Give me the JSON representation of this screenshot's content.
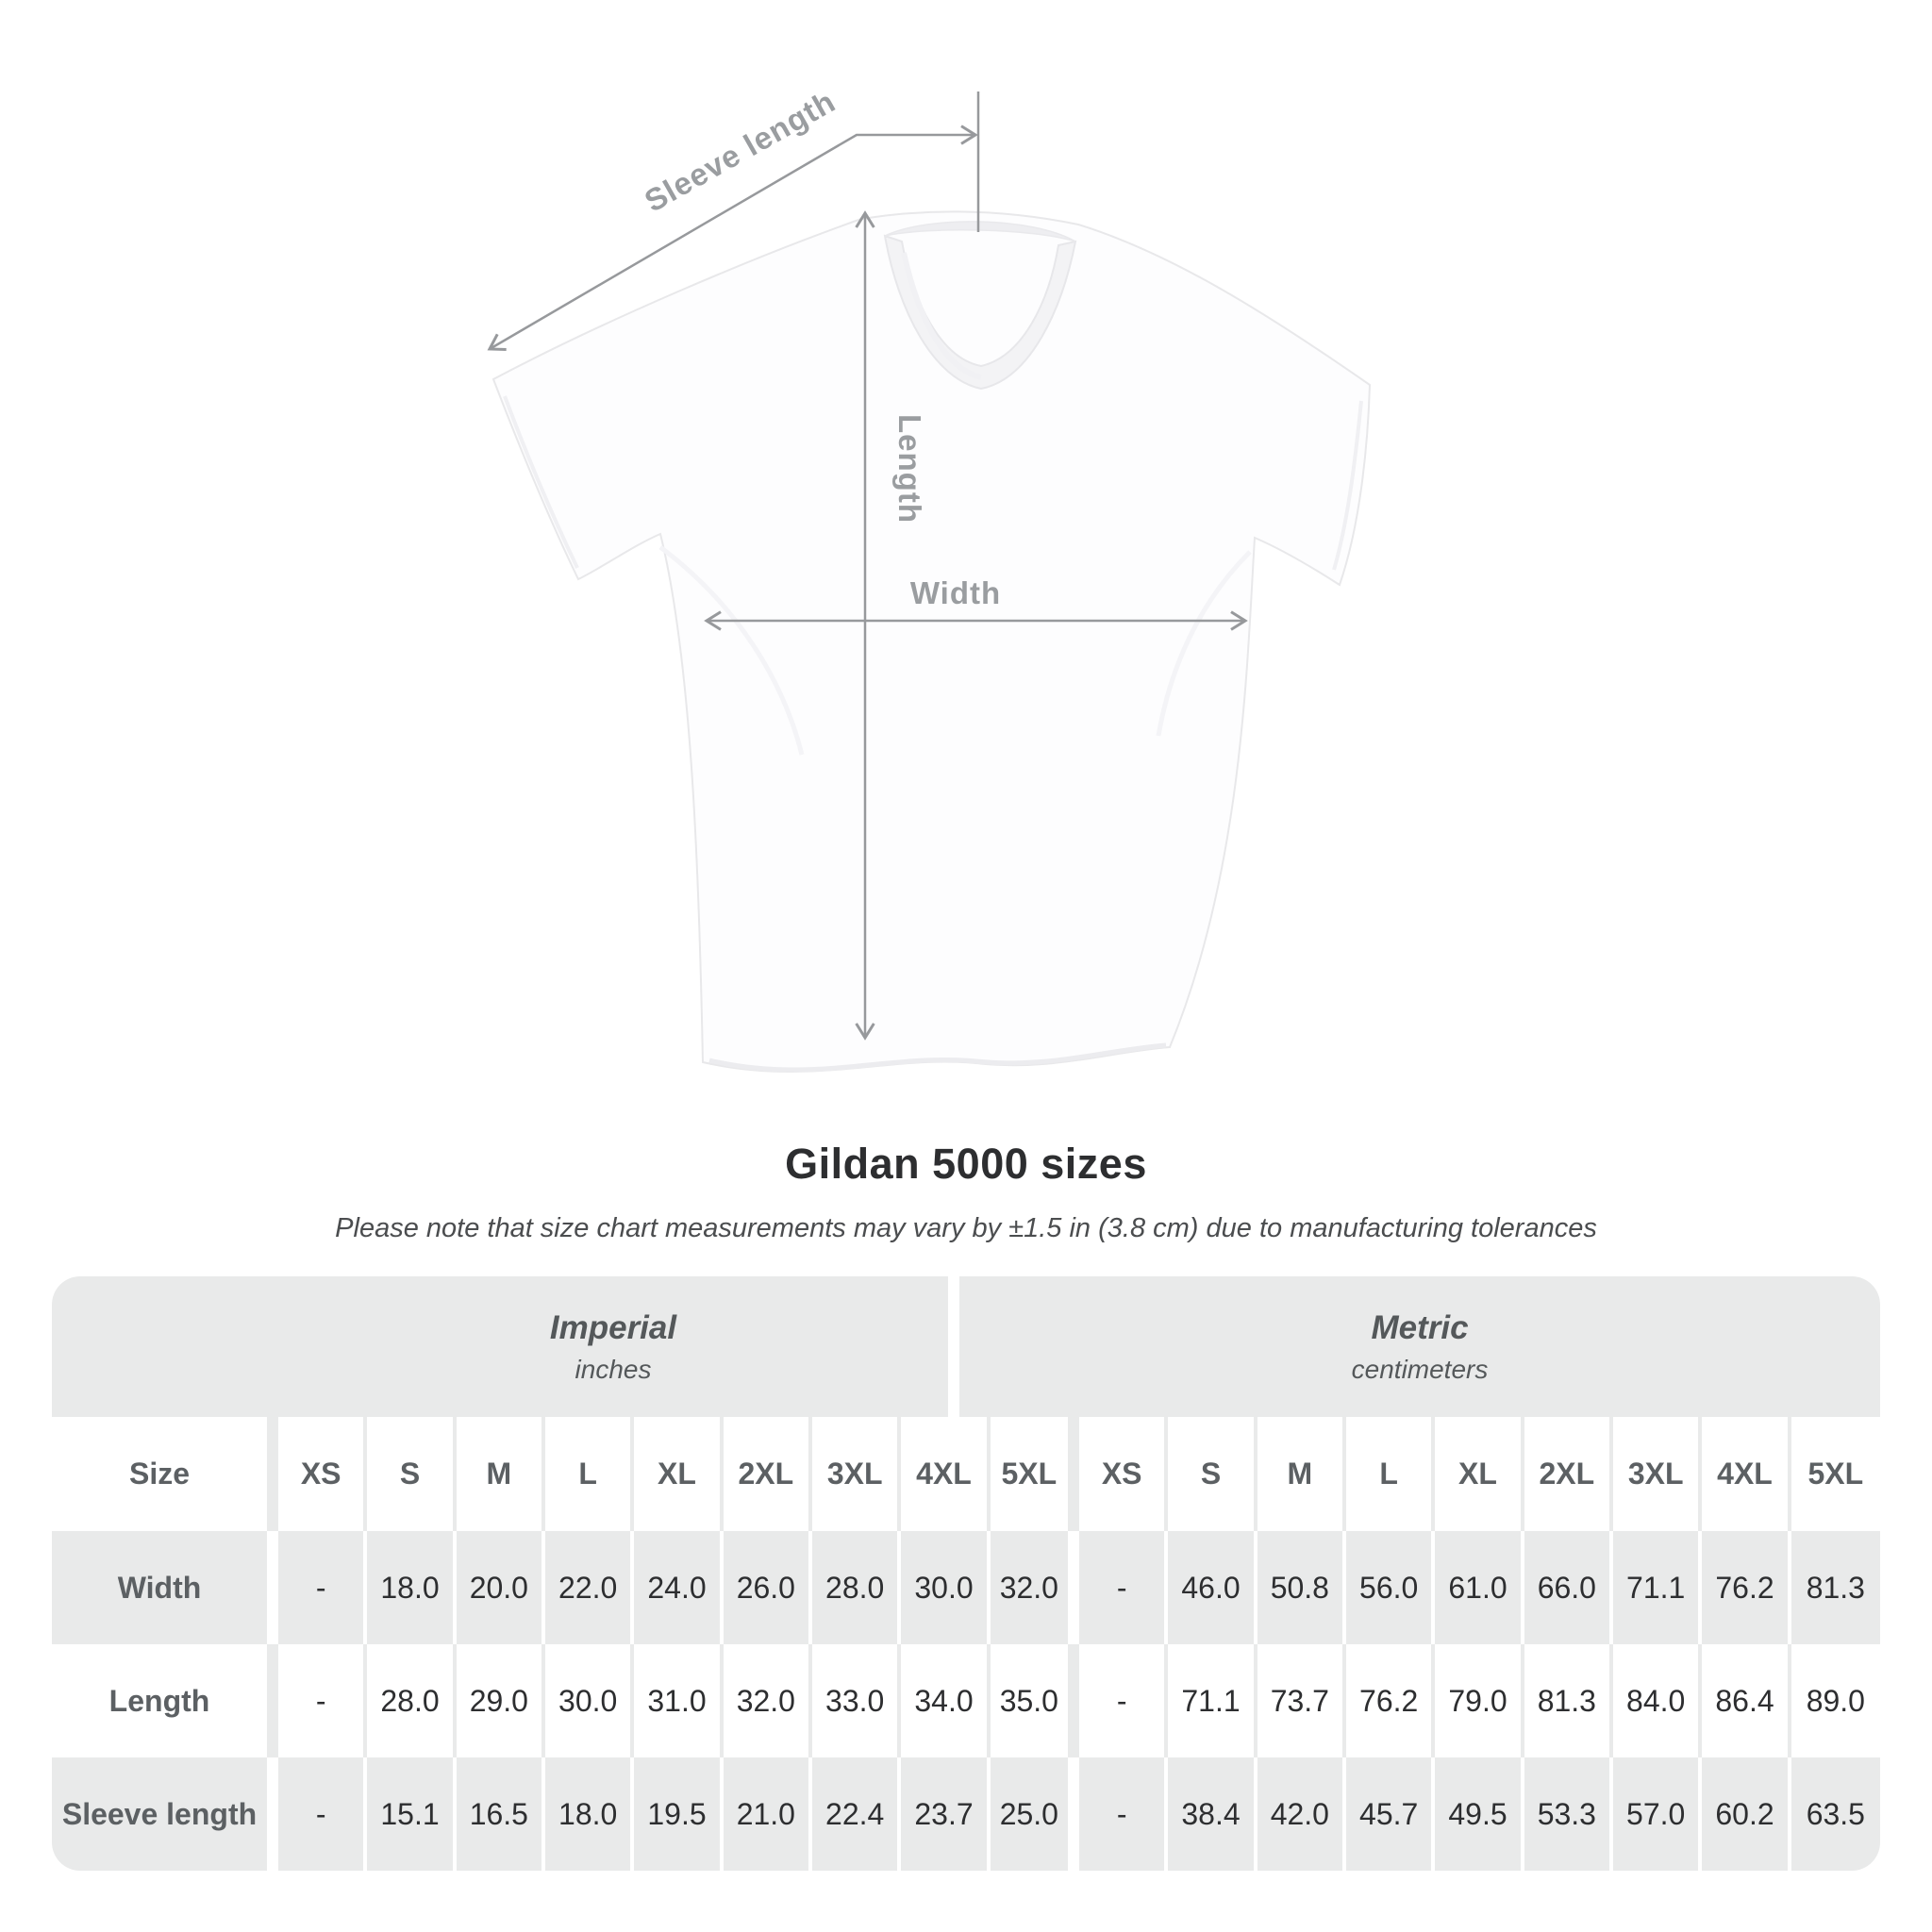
{
  "title": "Gildan 5000 sizes",
  "subtitle": "Please note that size chart measurements may vary by ±1.5 in (3.8 cm) due to manufacturing tolerances",
  "diagram": {
    "sleeve_label": "Sleeve length",
    "length_label": "Length",
    "width_label": "Width"
  },
  "table": {
    "size_label": "Size",
    "groups": [
      {
        "name": "Imperial",
        "unit": "inches"
      },
      {
        "name": "Metric",
        "unit": "centimeters"
      }
    ],
    "sizes": [
      "XS",
      "S",
      "M",
      "L",
      "XL",
      "2XL",
      "3XL",
      "4XL",
      "5XL"
    ],
    "rows": [
      {
        "label": "Width",
        "imperial": [
          "-",
          "18.0",
          "20.0",
          "22.0",
          "24.0",
          "26.0",
          "28.0",
          "30.0",
          "32.0"
        ],
        "metric": [
          "-",
          "46.0",
          "50.8",
          "56.0",
          "61.0",
          "66.0",
          "71.1",
          "76.2",
          "81.3"
        ]
      },
      {
        "label": "Length",
        "imperial": [
          "-",
          "28.0",
          "29.0",
          "30.0",
          "31.0",
          "32.0",
          "33.0",
          "34.0",
          "35.0"
        ],
        "metric": [
          "-",
          "71.1",
          "73.7",
          "76.2",
          "79.0",
          "81.3",
          "84.0",
          "86.4",
          "89.0"
        ]
      },
      {
        "label": "Sleeve length",
        "imperial": [
          "-",
          "15.1",
          "16.5",
          "18.0",
          "19.5",
          "21.0",
          "22.4",
          "23.7",
          "25.0"
        ],
        "metric": [
          "-",
          "38.4",
          "42.0",
          "45.7",
          "49.5",
          "53.3",
          "57.0",
          "60.2",
          "63.5"
        ]
      }
    ]
  },
  "chart_data": {
    "type": "table",
    "title": "Gildan 5000 sizes",
    "note": "Measurements may vary by ±1.5 in (3.8 cm)",
    "columns": [
      "Size",
      "XS",
      "S",
      "M",
      "L",
      "XL",
      "2XL",
      "3XL",
      "4XL",
      "5XL"
    ],
    "imperial_unit": "inches",
    "metric_unit": "centimeters",
    "rows_imperial": [
      [
        "Width",
        "-",
        18.0,
        20.0,
        22.0,
        24.0,
        26.0,
        28.0,
        30.0,
        32.0
      ],
      [
        "Length",
        "-",
        28.0,
        29.0,
        30.0,
        31.0,
        32.0,
        33.0,
        34.0,
        35.0
      ],
      [
        "Sleeve length",
        "-",
        15.1,
        16.5,
        18.0,
        19.5,
        21.0,
        22.4,
        23.7,
        25.0
      ]
    ],
    "rows_metric": [
      [
        "Width",
        "-",
        46.0,
        50.8,
        56.0,
        61.0,
        66.0,
        71.1,
        76.2,
        81.3
      ],
      [
        "Length",
        "-",
        71.1,
        73.7,
        76.2,
        79.0,
        81.3,
        84.0,
        86.4,
        89.0
      ],
      [
        "Sleeve length",
        "-",
        38.4,
        42.0,
        45.7,
        49.5,
        53.3,
        57.0,
        60.2,
        63.5
      ]
    ]
  },
  "colors": {
    "table_gray": "#e9eaea",
    "value_text": "#2d2e30",
    "label_text": "#5c6063",
    "group_text": "#54585a",
    "annotation_gray": "#97999c",
    "title_text": "#2d2e30"
  }
}
